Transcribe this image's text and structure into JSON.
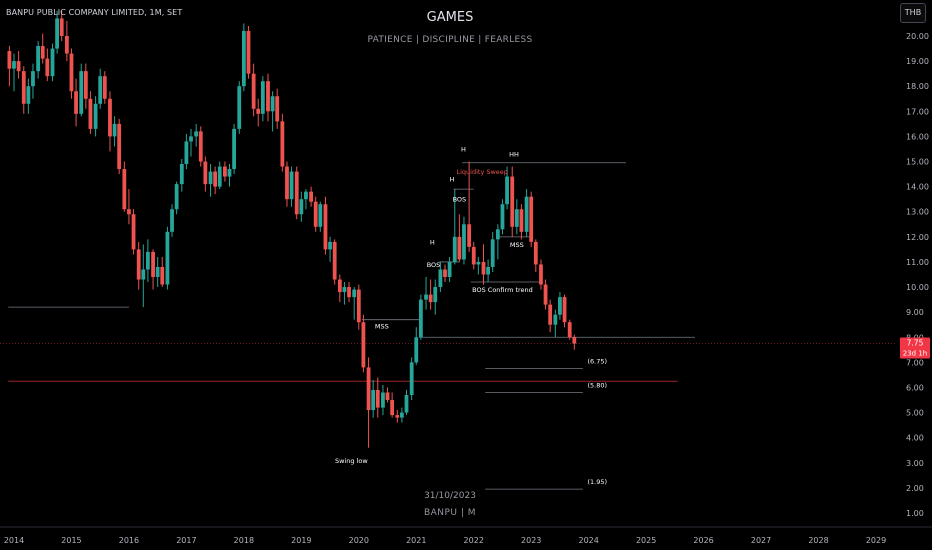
{
  "header": {
    "symbol": "BANPU PUBLIC COMPANY LIMITED, 1M, SET",
    "title": "GAMES",
    "subtitle": "PATIENCE  |  DISCIPLINE  |  FEARLESS",
    "currency": "THB"
  },
  "footer": {
    "date": "31/10/2023",
    "symbol_period": "BANPU | M"
  },
  "colors": {
    "bull": "#26a69a",
    "bear": "#ef5350",
    "background": "#000000",
    "axis_text": "#b2b5be",
    "level_line": "#787b86",
    "price_line": "#b22833"
  },
  "chart_data": {
    "type": "candlestick",
    "x_axis": {
      "ticks": [
        "2014",
        "2015",
        "2016",
        "2017",
        "2018",
        "2019",
        "2020",
        "2021",
        "2022",
        "2023",
        "2024",
        "2025",
        "2026",
        "2027",
        "2028",
        "2029"
      ]
    },
    "y_axis": {
      "ticks": [
        "1.00",
        "2.00",
        "3.00",
        "4.00",
        "5.00",
        "6.00",
        "7.00",
        "8.00",
        "9.00",
        "10.00",
        "11.00",
        "12.00",
        "13.00",
        "14.00",
        "15.00",
        "16.00",
        "17.00",
        "18.00",
        "19.00",
        "20.00"
      ],
      "range": [
        0.6,
        21.0
      ]
    },
    "current_price": {
      "value": 7.75,
      "label": "7.75",
      "countdown": "23d 1h"
    },
    "candles": [
      [
        2013.92,
        19.4,
        19.6,
        18.0,
        18.7
      ],
      [
        2014.0,
        18.7,
        19.3,
        17.8,
        19.0
      ],
      [
        2014.08,
        19.0,
        19.4,
        18.3,
        18.6
      ],
      [
        2014.17,
        18.6,
        18.8,
        16.9,
        17.3
      ],
      [
        2014.25,
        17.3,
        18.3,
        16.9,
        18.0
      ],
      [
        2014.33,
        18.0,
        18.9,
        17.5,
        18.6
      ],
      [
        2014.42,
        18.6,
        19.8,
        18.3,
        19.6
      ],
      [
        2014.5,
        19.6,
        20.1,
        18.9,
        19.1
      ],
      [
        2014.58,
        19.1,
        19.5,
        18.2,
        18.4
      ],
      [
        2014.67,
        18.4,
        19.7,
        18.2,
        19.5
      ],
      [
        2014.75,
        19.5,
        21.0,
        19.3,
        20.7
      ],
      [
        2014.83,
        20.7,
        21.0,
        19.8,
        20.0
      ],
      [
        2014.92,
        20.0,
        20.6,
        19.0,
        19.3
      ],
      [
        2015.0,
        19.3,
        19.5,
        17.5,
        17.8
      ],
      [
        2015.08,
        17.8,
        18.3,
        16.4,
        16.9
      ],
      [
        2015.17,
        16.9,
        18.9,
        16.8,
        18.6
      ],
      [
        2015.25,
        18.6,
        18.9,
        17.1,
        17.5
      ],
      [
        2015.33,
        17.5,
        17.8,
        16.1,
        16.3
      ],
      [
        2015.42,
        16.3,
        17.6,
        16.0,
        17.3
      ],
      [
        2015.5,
        17.3,
        18.7,
        17.1,
        18.4
      ],
      [
        2015.58,
        18.4,
        18.6,
        17.3,
        17.5
      ],
      [
        2015.67,
        17.5,
        17.8,
        15.4,
        16.0
      ],
      [
        2015.75,
        16.0,
        16.8,
        15.6,
        16.5
      ],
      [
        2015.83,
        16.5,
        16.7,
        14.5,
        14.7
      ],
      [
        2015.92,
        14.7,
        15.0,
        13.0,
        13.1
      ],
      [
        2016.0,
        13.1,
        13.9,
        12.5,
        12.9
      ],
      [
        2016.08,
        12.9,
        13.1,
        11.3,
        11.5
      ],
      [
        2016.17,
        11.5,
        11.8,
        9.9,
        10.3
      ],
      [
        2016.25,
        10.3,
        11.7,
        9.2,
        10.7
      ],
      [
        2016.33,
        10.7,
        11.9,
        10.2,
        11.4
      ],
      [
        2016.42,
        11.4,
        11.5,
        9.9,
        10.4
      ],
      [
        2016.5,
        10.4,
        11.2,
        10.0,
        10.8
      ],
      [
        2016.58,
        10.8,
        11.2,
        10.0,
        10.1
      ],
      [
        2016.67,
        10.1,
        12.4,
        9.9,
        12.2
      ],
      [
        2016.75,
        12.2,
        13.3,
        12.0,
        13.1
      ],
      [
        2016.83,
        13.1,
        14.2,
        12.9,
        14.1
      ],
      [
        2016.92,
        14.1,
        15.1,
        13.8,
        14.9
      ],
      [
        2017.0,
        14.9,
        16.1,
        14.7,
        15.8
      ],
      [
        2017.08,
        15.8,
        16.3,
        15.2,
        16.0
      ],
      [
        2017.17,
        16.0,
        16.5,
        15.6,
        16.2
      ],
      [
        2017.25,
        16.2,
        16.4,
        14.8,
        15.0
      ],
      [
        2017.33,
        15.0,
        15.2,
        13.8,
        14.1
      ],
      [
        2017.42,
        14.1,
        14.9,
        13.6,
        14.6
      ],
      [
        2017.5,
        14.6,
        14.8,
        13.7,
        14.0
      ],
      [
        2017.58,
        14.0,
        15.0,
        13.9,
        14.8
      ],
      [
        2017.67,
        14.8,
        15.0,
        14.2,
        14.4
      ],
      [
        2017.75,
        14.4,
        14.9,
        14.0,
        14.7
      ],
      [
        2017.83,
        14.7,
        16.5,
        14.5,
        16.3
      ],
      [
        2017.92,
        16.3,
        18.2,
        16.1,
        18.0
      ],
      [
        2018.0,
        18.0,
        20.5,
        17.8,
        20.2
      ],
      [
        2018.08,
        20.2,
        20.4,
        18.3,
        18.5
      ],
      [
        2018.17,
        18.5,
        18.9,
        16.8,
        17.1
      ],
      [
        2018.25,
        17.1,
        17.5,
        16.4,
        16.9
      ],
      [
        2018.33,
        16.9,
        18.4,
        16.6,
        18.2
      ],
      [
        2018.42,
        18.2,
        18.5,
        16.6,
        17.0
      ],
      [
        2018.5,
        17.0,
        17.8,
        16.2,
        17.6
      ],
      [
        2018.58,
        17.6,
        17.9,
        16.3,
        16.6
      ],
      [
        2018.67,
        16.6,
        16.9,
        14.6,
        14.8
      ],
      [
        2018.75,
        14.8,
        15.0,
        13.2,
        13.5
      ],
      [
        2018.83,
        13.5,
        14.8,
        13.2,
        14.6
      ],
      [
        2018.92,
        14.6,
        14.8,
        12.7,
        12.9
      ],
      [
        2019.0,
        12.9,
        13.8,
        12.6,
        13.5
      ],
      [
        2019.08,
        13.5,
        13.9,
        13.1,
        13.8
      ],
      [
        2019.17,
        13.8,
        14.0,
        13.2,
        13.4
      ],
      [
        2019.25,
        13.4,
        13.6,
        12.2,
        12.4
      ],
      [
        2019.33,
        12.4,
        13.4,
        12.2,
        13.3
      ],
      [
        2019.42,
        13.3,
        13.6,
        11.3,
        11.5
      ],
      [
        2019.5,
        11.5,
        12.0,
        11.0,
        11.8
      ],
      [
        2019.58,
        11.8,
        11.9,
        10.1,
        10.3
      ],
      [
        2019.67,
        10.3,
        10.5,
        9.4,
        9.8
      ],
      [
        2019.75,
        9.8,
        10.2,
        9.3,
        10.0
      ],
      [
        2019.83,
        10.0,
        10.2,
        9.4,
        9.6
      ],
      [
        2019.92,
        9.6,
        10.0,
        8.7,
        9.9
      ],
      [
        2020.0,
        9.9,
        10.1,
        8.3,
        8.6
      ],
      [
        2020.08,
        8.6,
        8.9,
        6.6,
        6.8
      ],
      [
        2020.17,
        6.8,
        7.2,
        3.6,
        5.1
      ],
      [
        2020.25,
        5.1,
        6.3,
        4.8,
        5.9
      ],
      [
        2020.33,
        5.9,
        6.4,
        4.8,
        5.2
      ],
      [
        2020.42,
        5.2,
        6.1,
        4.9,
        5.8
      ],
      [
        2020.5,
        5.8,
        6.0,
        5.4,
        5.5
      ],
      [
        2020.58,
        5.5,
        5.8,
        4.8,
        4.9
      ],
      [
        2020.67,
        4.9,
        5.1,
        4.6,
        4.8
      ],
      [
        2020.75,
        4.8,
        5.2,
        4.6,
        5.0
      ],
      [
        2020.83,
        5.0,
        5.9,
        4.9,
        5.7
      ],
      [
        2020.92,
        5.7,
        7.2,
        5.5,
        7.0
      ],
      [
        2021.0,
        7.0,
        8.4,
        6.9,
        8.0
      ],
      [
        2021.08,
        8.0,
        9.7,
        7.9,
        9.5
      ],
      [
        2021.17,
        9.5,
        10.4,
        9.1,
        9.7
      ],
      [
        2021.25,
        9.7,
        10.3,
        9.1,
        9.4
      ],
      [
        2021.33,
        9.4,
        10.3,
        8.9,
        10.0
      ],
      [
        2021.42,
        10.0,
        11.0,
        9.8,
        10.7
      ],
      [
        2021.5,
        10.7,
        10.9,
        10.2,
        10.4
      ],
      [
        2021.58,
        10.4,
        11.2,
        10.2,
        11.0
      ],
      [
        2021.67,
        11.0,
        13.9,
        10.9,
        12.0
      ],
      [
        2021.75,
        12.0,
        12.9,
        11.0,
        11.1
      ],
      [
        2021.83,
        11.1,
        12.8,
        10.9,
        12.5
      ],
      [
        2021.92,
        12.5,
        15.0,
        11.4,
        11.6
      ],
      [
        2022.0,
        11.6,
        11.8,
        10.7,
        10.9
      ],
      [
        2022.08,
        10.9,
        11.2,
        10.5,
        11.0
      ],
      [
        2022.17,
        11.0,
        11.7,
        10.1,
        10.5
      ],
      [
        2022.25,
        10.5,
        11.1,
        10.2,
        10.8
      ],
      [
        2022.33,
        10.8,
        12.2,
        10.6,
        11.9
      ],
      [
        2022.42,
        11.9,
        12.5,
        11.1,
        12.3
      ],
      [
        2022.5,
        12.3,
        13.5,
        12.1,
        13.3
      ],
      [
        2022.58,
        13.3,
        14.8,
        13.1,
        14.4
      ],
      [
        2022.67,
        14.4,
        14.8,
        12.0,
        12.4
      ],
      [
        2022.75,
        12.4,
        13.5,
        12.1,
        13.1
      ],
      [
        2022.83,
        13.1,
        13.3,
        11.9,
        12.2
      ],
      [
        2022.92,
        12.2,
        13.9,
        12.0,
        13.6
      ],
      [
        2023.0,
        13.6,
        13.8,
        11.6,
        11.8
      ],
      [
        2023.08,
        11.8,
        11.9,
        10.6,
        10.9
      ],
      [
        2023.17,
        10.9,
        11.1,
        9.9,
        10.1
      ],
      [
        2023.25,
        10.1,
        10.3,
        9.1,
        9.3
      ],
      [
        2023.33,
        9.3,
        9.5,
        8.2,
        8.5
      ],
      [
        2023.42,
        8.5,
        9.1,
        8.0,
        8.9
      ],
      [
        2023.5,
        8.9,
        9.8,
        8.7,
        9.6
      ],
      [
        2023.58,
        9.6,
        9.7,
        8.4,
        8.6
      ],
      [
        2023.67,
        8.6,
        8.7,
        7.9,
        8.0
      ],
      [
        2023.75,
        8.0,
        8.1,
        7.5,
        7.75
      ]
    ],
    "levels": [
      {
        "x1": 2013.9,
        "x2": 2016.0,
        "y": 9.2,
        "color": "#787b86"
      },
      {
        "x1": 2020.05,
        "x2": 2021.05,
        "y": 8.7,
        "color": "#787b86"
      },
      {
        "x1": 2021.05,
        "x2": 2025.85,
        "y": 8.0,
        "color": "#787b86"
      },
      {
        "x1": 2021.8,
        "x2": 2024.65,
        "y": 14.95,
        "color": "#787b86"
      },
      {
        "x1": 2021.95,
        "x2": 2023.15,
        "y": 10.2,
        "color": "#787b86"
      },
      {
        "x1": 2022.45,
        "x2": 2023.0,
        "y": 12.0,
        "color": "#787b86"
      },
      {
        "x1": 2021.4,
        "x2": 2021.75,
        "y": 11.0,
        "color": "#787b86"
      },
      {
        "x1": 2021.65,
        "x2": 2022.0,
        "y": 13.9,
        "color": "#787b86"
      },
      {
        "x1": 2022.2,
        "x2": 2023.9,
        "y": 6.75,
        "color": "#787b86"
      },
      {
        "x1": 2022.2,
        "x2": 2023.9,
        "y": 5.8,
        "color": "#787b86"
      },
      {
        "x1": 2022.2,
        "x2": 2023.9,
        "y": 1.95,
        "color": "#787b86"
      },
      {
        "x1": 2013.9,
        "x2": 2025.55,
        "y": 6.25,
        "color": "#b22833"
      }
    ],
    "annotations": [
      {
        "text": "HH",
        "x": 2022.7,
        "y": 15.2,
        "color": "#ffffff",
        "anchor": "middle"
      },
      {
        "text": "H",
        "x": 2021.82,
        "y": 15.4,
        "color": "#ffffff",
        "anchor": "middle"
      },
      {
        "text": "H",
        "x": 2021.62,
        "y": 14.2,
        "color": "#ffffff",
        "anchor": "middle"
      },
      {
        "text": "H",
        "x": 2021.28,
        "y": 11.7,
        "color": "#ffffff",
        "anchor": "middle"
      },
      {
        "text": "Liquidity Sweep",
        "x": 2021.7,
        "y": 14.5,
        "color": "#ef5350",
        "anchor": "start"
      },
      {
        "text": "BOS",
        "x": 2021.75,
        "y": 13.4,
        "color": "#ffffff",
        "anchor": "middle"
      },
      {
        "text": "BOS",
        "x": 2021.3,
        "y": 10.8,
        "color": "#ffffff",
        "anchor": "middle"
      },
      {
        "text": "MSS",
        "x": 2022.75,
        "y": 11.6,
        "color": "#ffffff",
        "anchor": "middle"
      },
      {
        "text": "BOS  Confirm trend",
        "x": 2022.5,
        "y": 9.8,
        "color": "#ffffff",
        "anchor": "middle"
      },
      {
        "text": "MSS",
        "x": 2020.4,
        "y": 8.35,
        "color": "#ffffff",
        "anchor": "middle"
      },
      {
        "text": "Swing low",
        "x": 2019.87,
        "y": 3.0,
        "color": "#ffffff",
        "anchor": "middle"
      },
      {
        "text": "(6.75)",
        "x": 2023.98,
        "y": 6.95,
        "color": "#ffffff",
        "anchor": "start"
      },
      {
        "text": "(5.80)",
        "x": 2023.98,
        "y": 6.0,
        "color": "#ffffff",
        "anchor": "start"
      },
      {
        "text": "(1.95)",
        "x": 2023.98,
        "y": 2.15,
        "color": "#ffffff",
        "anchor": "start"
      }
    ]
  }
}
